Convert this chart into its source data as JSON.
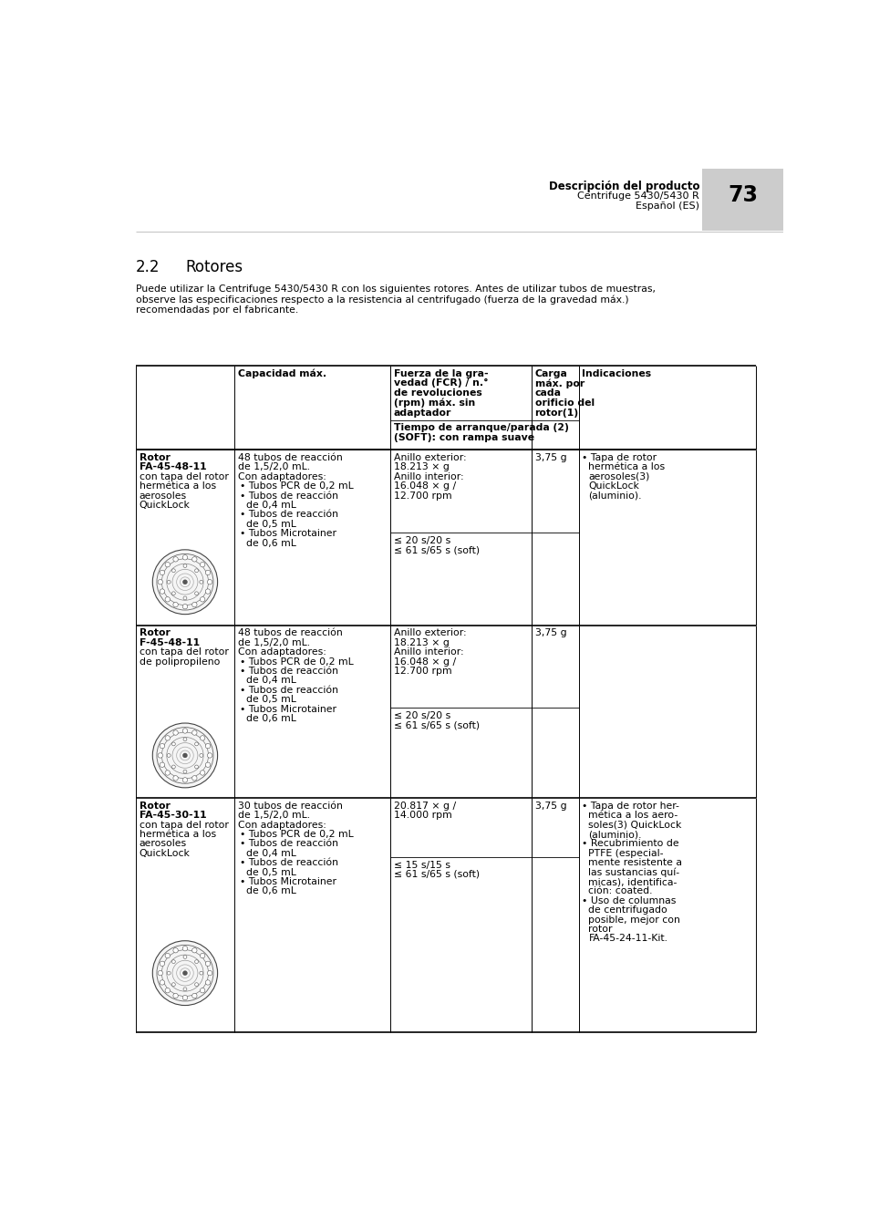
{
  "header_bold": "Descripción del producto",
  "header_line1": "Centrifuge 5430/5430 R",
  "header_line2": "Español (ES)",
  "page_number": "73",
  "section": "2.2",
  "section_title": "Rotores",
  "intro_line1": "Puede utilizar la Centrifuge 5430/5430 R con los siguientes rotores. Antes de utilizar tubos de muestras,",
  "intro_line2": "observe las especificaciones respecto a la resistencia al centrifugado (fuerza de la gravedad máx.)",
  "intro_line3": "recomendadas por el fabricante.",
  "col0_header": "",
  "col1_header": "Capacidad máx.",
  "col2_header": "Fuerza de la gra-\nvedad (FCR) / n.°\nde revoluciones\n(rpm) máx. sin\nadaptador",
  "col3_header": "Carga\nmáx. por\ncada\norificio del\nrotor(1)",
  "col4_header": "Indicaciones",
  "subheader": "Tiempo de arranque/parada (2)",
  "subheader2": "(SOFT): con rampa suave",
  "rows": [
    {
      "rotor_name": "Rotor",
      "rotor_model": "FA-45-48-11",
      "rotor_desc1": "con tapa del rotor",
      "rotor_desc2": "hermética a los",
      "rotor_desc3": "aerosoles",
      "rotor_desc4": "QuickLock",
      "cap_line1": "48 tubos de reacción",
      "cap_line2": "de 1,5/2,0 mL.",
      "cap_line3": "Con adaptadores:",
      "cap_bullets": [
        "Tubos PCR de 0,2 mL",
        "Tubos de reacción",
        "  de 0,4 mL",
        "Tubos de reacción",
        "  de 0,5 mL",
        "Tubos Microtainer",
        "  de 0,6 mL"
      ],
      "force_top1": "Anillo exterior:",
      "force_top2": "18.213 × g",
      "force_top3": "Anillo interior:",
      "force_top4": "16.048 × g /",
      "force_top5": "12.700 rpm",
      "force_bot1": "≤ 20 s/20 s",
      "force_bot2": "≤ 61 s/65 s (soft)",
      "load": "3,75 g",
      "notes": [
        "• Tapa de rotor",
        "  hermética a los",
        "  aerosoles(3)",
        "  QuickLock",
        "  (aluminio)."
      ]
    },
    {
      "rotor_name": "Rotor",
      "rotor_model": "F-45-48-11",
      "rotor_desc1": "con tapa del rotor",
      "rotor_desc2": "de polipropileno",
      "rotor_desc3": "",
      "rotor_desc4": "",
      "cap_line1": "48 tubos de reacción",
      "cap_line2": "de 1,5/2,0 mL.",
      "cap_line3": "Con adaptadores:",
      "cap_bullets": [
        "Tubos PCR de 0,2 mL",
        "Tubos de reacción",
        "  de 0,4 mL",
        "Tubos de reacción",
        "  de 0,5 mL",
        "Tubos Microtainer",
        "  de 0,6 mL"
      ],
      "force_top1": "Anillo exterior:",
      "force_top2": "18.213 × g",
      "force_top3": "Anillo interior:",
      "force_top4": "16.048 × g /",
      "force_top5": "12.700 rpm",
      "force_bot1": "≤ 20 s/20 s",
      "force_bot2": "≤ 61 s/65 s (soft)",
      "load": "3,75 g",
      "notes": []
    },
    {
      "rotor_name": "Rotor",
      "rotor_model": "FA-45-30-11",
      "rotor_desc1": "con tapa del rotor",
      "rotor_desc2": "hermética a los",
      "rotor_desc3": "aerosoles",
      "rotor_desc4": "QuickLock",
      "cap_line1": "30 tubos de reacción",
      "cap_line2": "de 1,5/2,0 mL.",
      "cap_line3": "Con adaptadores:",
      "cap_bullets": [
        "Tubos PCR de 0,2 mL",
        "Tubos de reacción",
        "  de 0,4 mL",
        "Tubos de reacción",
        "  de 0,5 mL",
        "Tubos Microtainer",
        "  de 0,6 mL"
      ],
      "force_top1": "20.817 × g /",
      "force_top2": "14.000 rpm",
      "force_top3": "",
      "force_top4": "",
      "force_top5": "",
      "force_bot1": "≤ 15 s/15 s",
      "force_bot2": "≤ 61 s/65 s (soft)",
      "load": "3,75 g",
      "notes": [
        "• Tapa de rotor her-",
        "  mética a los aero-",
        "  soles(3) QuickLock",
        "  (aluminio).",
        "• Recubrimiento de",
        "  PTFE (especial-",
        "  mente resistente a",
        "  las sustancias quí-",
        "  micas), identifica-",
        "  ción: coated.",
        "• Uso de columnas",
        "  de centrifugado",
        "  posible, mejor con",
        "  rotor",
        "  FA-45-24-11-Kit."
      ]
    }
  ],
  "bg_color": "#ffffff",
  "header_bg": "#cccccc",
  "text_color": "#000000",
  "fs_body": 7.8,
  "fs_header": 8.0,
  "fs_section": 12.0,
  "fs_pagenumber": 17.0
}
